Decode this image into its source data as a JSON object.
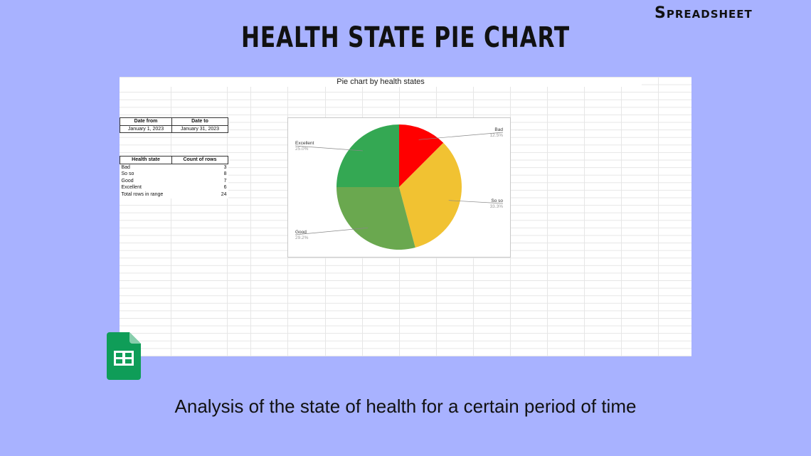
{
  "brand": "Spreadsheet",
  "headline": "HEALTH STATE PIE CHART",
  "subtitle": "Analysis of the state of health for a certain period of time",
  "date_table": {
    "headers": [
      "Date from",
      "Date to"
    ],
    "values": [
      "January 1, 2023",
      "January 31, 2023"
    ]
  },
  "health_table": {
    "headers": [
      "Health state",
      "Count of rows"
    ],
    "rows": [
      {
        "state": "Bad",
        "count": "3"
      },
      {
        "state": "So so",
        "count": "8"
      },
      {
        "state": "Good",
        "count": "7"
      },
      {
        "state": "Excellent",
        "count": "6"
      }
    ],
    "total_label": "Total rows in range",
    "total_value": "24"
  },
  "chart_data": {
    "type": "pie",
    "title": "Pie chart by health states",
    "slices": [
      {
        "label": "Bad",
        "value": 3,
        "percent": "12.5%",
        "color": "#ff0000"
      },
      {
        "label": "So so",
        "value": 8,
        "percent": "33.3%",
        "color": "#f1c232"
      },
      {
        "label": "Good",
        "value": 7,
        "percent": "29.2%",
        "color": "#6aa84f"
      },
      {
        "label": "Excellent",
        "value": 6,
        "percent": "25.0%",
        "color": "#34a853"
      }
    ]
  },
  "colors": {
    "background": "#a8b2ff",
    "sheets_logo": "#0f9d58"
  },
  "icons": {
    "logo": "google-sheets-icon"
  }
}
